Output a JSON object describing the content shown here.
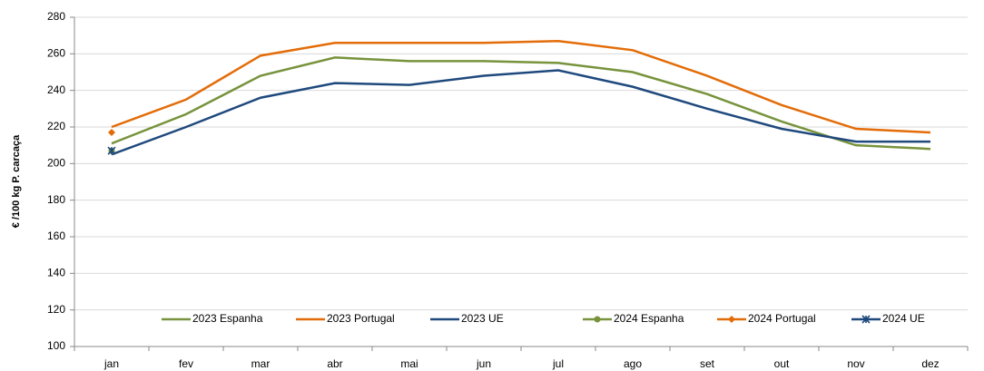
{
  "chart_data": {
    "type": "line",
    "y_label": "€ /100 kg P. carcaça",
    "categories": [
      "jan",
      "fev",
      "mar",
      "abr",
      "mai",
      "jun",
      "jul",
      "ago",
      "set",
      "out",
      "nov",
      "dez"
    ],
    "series": [
      {
        "name": "2023 Espanha",
        "color": "#77933c",
        "values": [
          211,
          227,
          248,
          258,
          256,
          256,
          255,
          250,
          238,
          223,
          210,
          208
        ]
      },
      {
        "name": "2023 Portugal",
        "color": "#e36c09",
        "values": [
          220,
          235,
          259,
          266,
          266,
          266,
          267,
          262,
          248,
          232,
          219,
          217
        ]
      },
      {
        "name": "2023 UE",
        "color": "#1f497d",
        "values": [
          205,
          220,
          236,
          244,
          243,
          248,
          251,
          242,
          230,
          219,
          212,
          212
        ]
      },
      {
        "name": "2024 Espanha",
        "color": "#77933c",
        "marker": "circle",
        "values": [
          207,
          null,
          null,
          null,
          null,
          null,
          null,
          null,
          null,
          null,
          null,
          null
        ]
      },
      {
        "name": "2024 Portugal",
        "color": "#e36c09",
        "marker": "diamond",
        "values": [
          217,
          null,
          null,
          null,
          null,
          null,
          null,
          null,
          null,
          null,
          null,
          null
        ]
      },
      {
        "name": "2024 UE",
        "color": "#1f497d",
        "marker": "star",
        "values": [
          207,
          null,
          null,
          null,
          null,
          null,
          null,
          null,
          null,
          null,
          null,
          null
        ]
      }
    ],
    "ylim": [
      100,
      280
    ],
    "yticks": [
      100,
      120,
      140,
      160,
      180,
      200,
      220,
      240,
      260,
      280
    ],
    "grid": true
  }
}
